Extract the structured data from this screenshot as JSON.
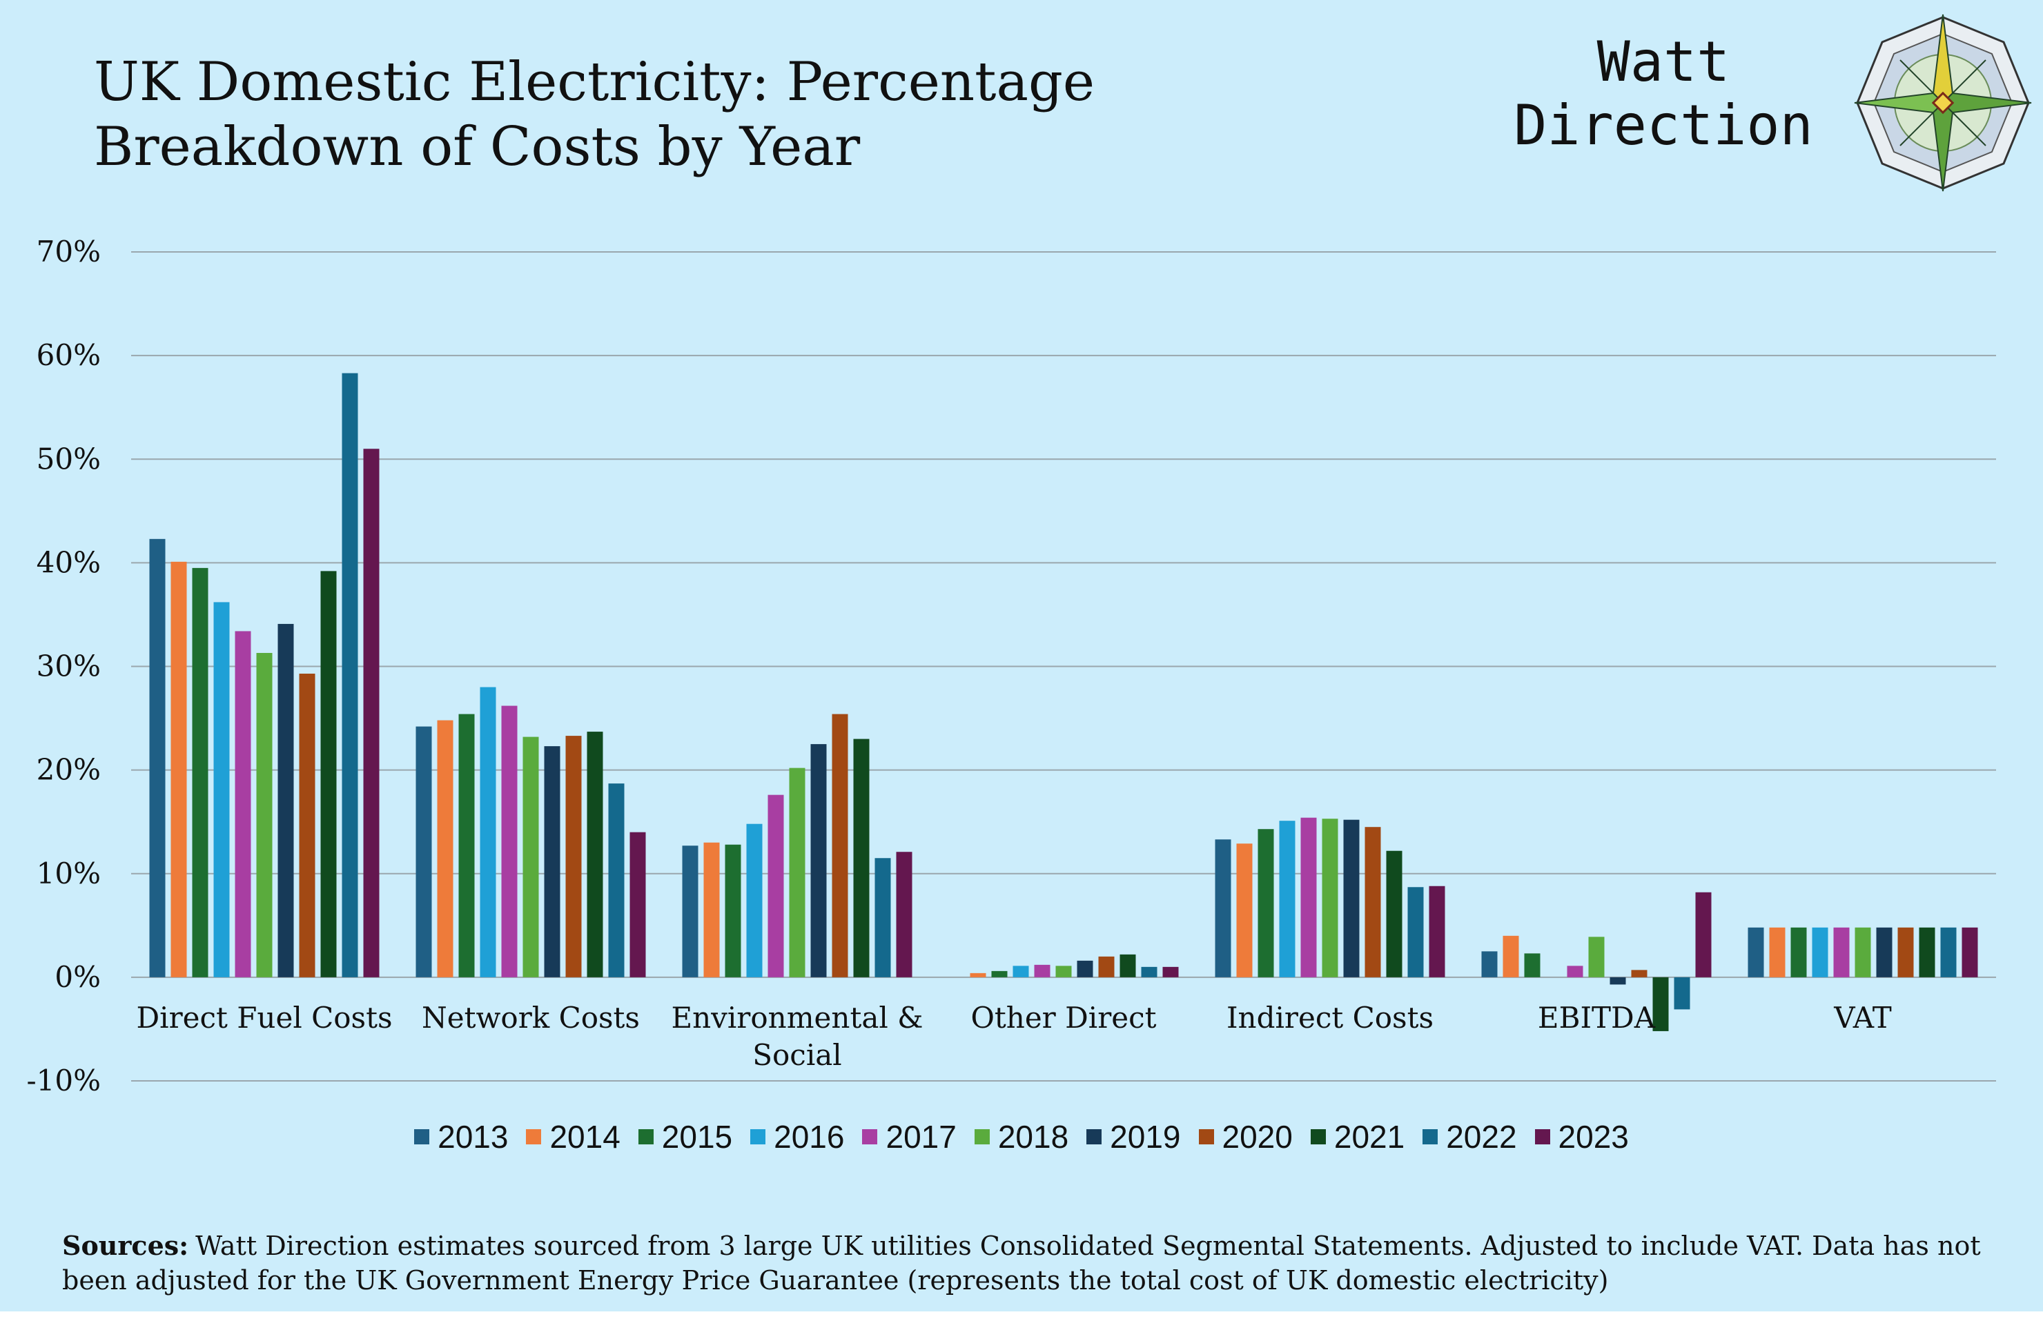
{
  "header": {
    "title_line1": "UK Domestic Electricity: Percentage",
    "title_line2": "Breakdown of Costs by Year",
    "brand_line1": "Watt",
    "brand_line2": "Direction",
    "logo_icon": "compass-rose-icon"
  },
  "sources": {
    "label": "Sources:",
    "text": "Watt Direction estimates sourced from 3 large UK utilities Consolidated Segmental Statements. Adjusted  to include VAT. Data has not been adjusted for the  UK Government Energy Price Guarantee (represents the total cost of UK domestic electricity)"
  },
  "chart_data": {
    "type": "bar",
    "title": "UK Domestic Electricity: Percentage Breakdown of Costs by Year",
    "xlabel": "",
    "ylabel": "",
    "ylim": [
      -10,
      70
    ],
    "yticks": [
      -10,
      0,
      10,
      20,
      30,
      40,
      50,
      60,
      70
    ],
    "ytick_labels": [
      "-10%",
      "0%",
      "10%",
      "20%",
      "30%",
      "40%",
      "50%",
      "60%",
      "70%"
    ],
    "grid": true,
    "legend_position": "bottom",
    "categories": [
      "Direct Fuel Costs",
      "Network Costs",
      "Environmental & Social",
      "Other Direct",
      "Indirect Costs",
      "EBITDA",
      "VAT"
    ],
    "category_label_lines": [
      [
        "Direct Fuel Costs"
      ],
      [
        "Network Costs"
      ],
      [
        "Environmental &",
        "Social"
      ],
      [
        "Other Direct"
      ],
      [
        "Indirect Costs"
      ],
      [
        "EBITDA"
      ],
      [
        "VAT"
      ]
    ],
    "series": [
      {
        "name": "2013",
        "color": "#1f5f85",
        "values": [
          42.3,
          24.2,
          12.7,
          0.0,
          13.3,
          2.5,
          4.8
        ]
      },
      {
        "name": "2014",
        "color": "#ee7b3a",
        "values": [
          40.1,
          24.8,
          13.0,
          0.4,
          12.9,
          4.0,
          4.8
        ]
      },
      {
        "name": "2015",
        "color": "#1d6e30",
        "values": [
          39.5,
          25.4,
          12.8,
          0.6,
          14.3,
          2.3,
          4.8
        ]
      },
      {
        "name": "2016",
        "color": "#1fa0d6",
        "values": [
          36.2,
          28.0,
          14.8,
          1.1,
          15.1,
          0.0,
          4.8
        ]
      },
      {
        "name": "2017",
        "color": "#a83ea2",
        "values": [
          33.4,
          26.2,
          17.6,
          1.2,
          15.4,
          1.1,
          4.8
        ]
      },
      {
        "name": "2018",
        "color": "#5aab3d",
        "values": [
          31.3,
          23.2,
          20.2,
          1.1,
          15.3,
          3.9,
          4.8
        ]
      },
      {
        "name": "2019",
        "color": "#173a58",
        "values": [
          34.1,
          22.3,
          22.5,
          1.6,
          15.2,
          -0.7,
          4.8
        ]
      },
      {
        "name": "2020",
        "color": "#a24914",
        "values": [
          29.3,
          23.3,
          25.4,
          2.0,
          14.5,
          0.7,
          4.8
        ]
      },
      {
        "name": "2021",
        "color": "#104a1e",
        "values": [
          39.2,
          23.7,
          23.0,
          2.2,
          12.2,
          -5.2,
          4.8
        ]
      },
      {
        "name": "2022",
        "color": "#14698d",
        "values": [
          58.3,
          18.7,
          11.5,
          1.0,
          8.7,
          -3.1,
          4.8
        ]
      },
      {
        "name": "2023",
        "color": "#64174f",
        "values": [
          51.0,
          14.0,
          12.1,
          1.0,
          8.8,
          8.2,
          4.8
        ]
      }
    ]
  }
}
